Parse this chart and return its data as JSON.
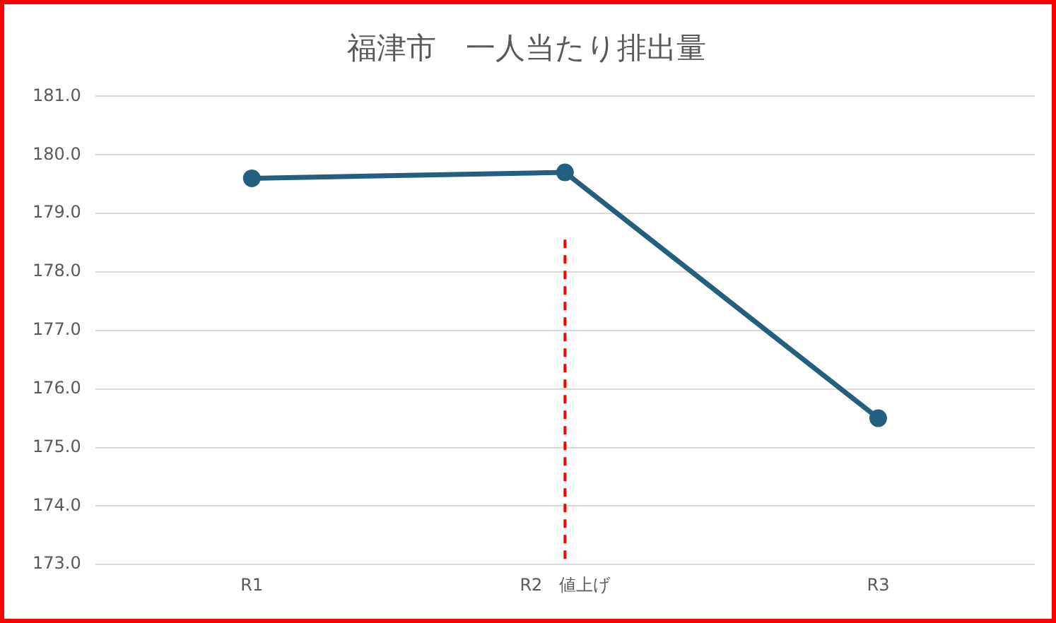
{
  "chart_data": {
    "type": "line",
    "title": "福津市　一人当たり排出量",
    "categories": [
      "R1",
      "R2　値上げ",
      "R3"
    ],
    "series": [
      {
        "color": "#245f7e",
        "values": [
          179.6,
          179.7,
          175.5
        ]
      }
    ],
    "ylim": [
      173,
      181
    ],
    "yticks": [
      {
        "value": 173,
        "label": "173.0"
      },
      {
        "value": 174,
        "label": "174.0"
      },
      {
        "value": 175,
        "label": "175.0"
      },
      {
        "value": 176,
        "label": "176.0"
      },
      {
        "value": 177,
        "label": "177.0"
      },
      {
        "value": 178,
        "label": "178.0"
      },
      {
        "value": 179,
        "label": "179.0"
      },
      {
        "value": 180,
        "label": "180.0"
      },
      {
        "value": 181,
        "label": "181.0"
      }
    ],
    "grid": "y",
    "legend": false,
    "marker": "circle",
    "line_style": "solid",
    "ref_lines": [
      {
        "axis": "x",
        "value": "R2　値上げ",
        "color": "#ff0000",
        "line_style": "dashed"
      }
    ]
  }
}
